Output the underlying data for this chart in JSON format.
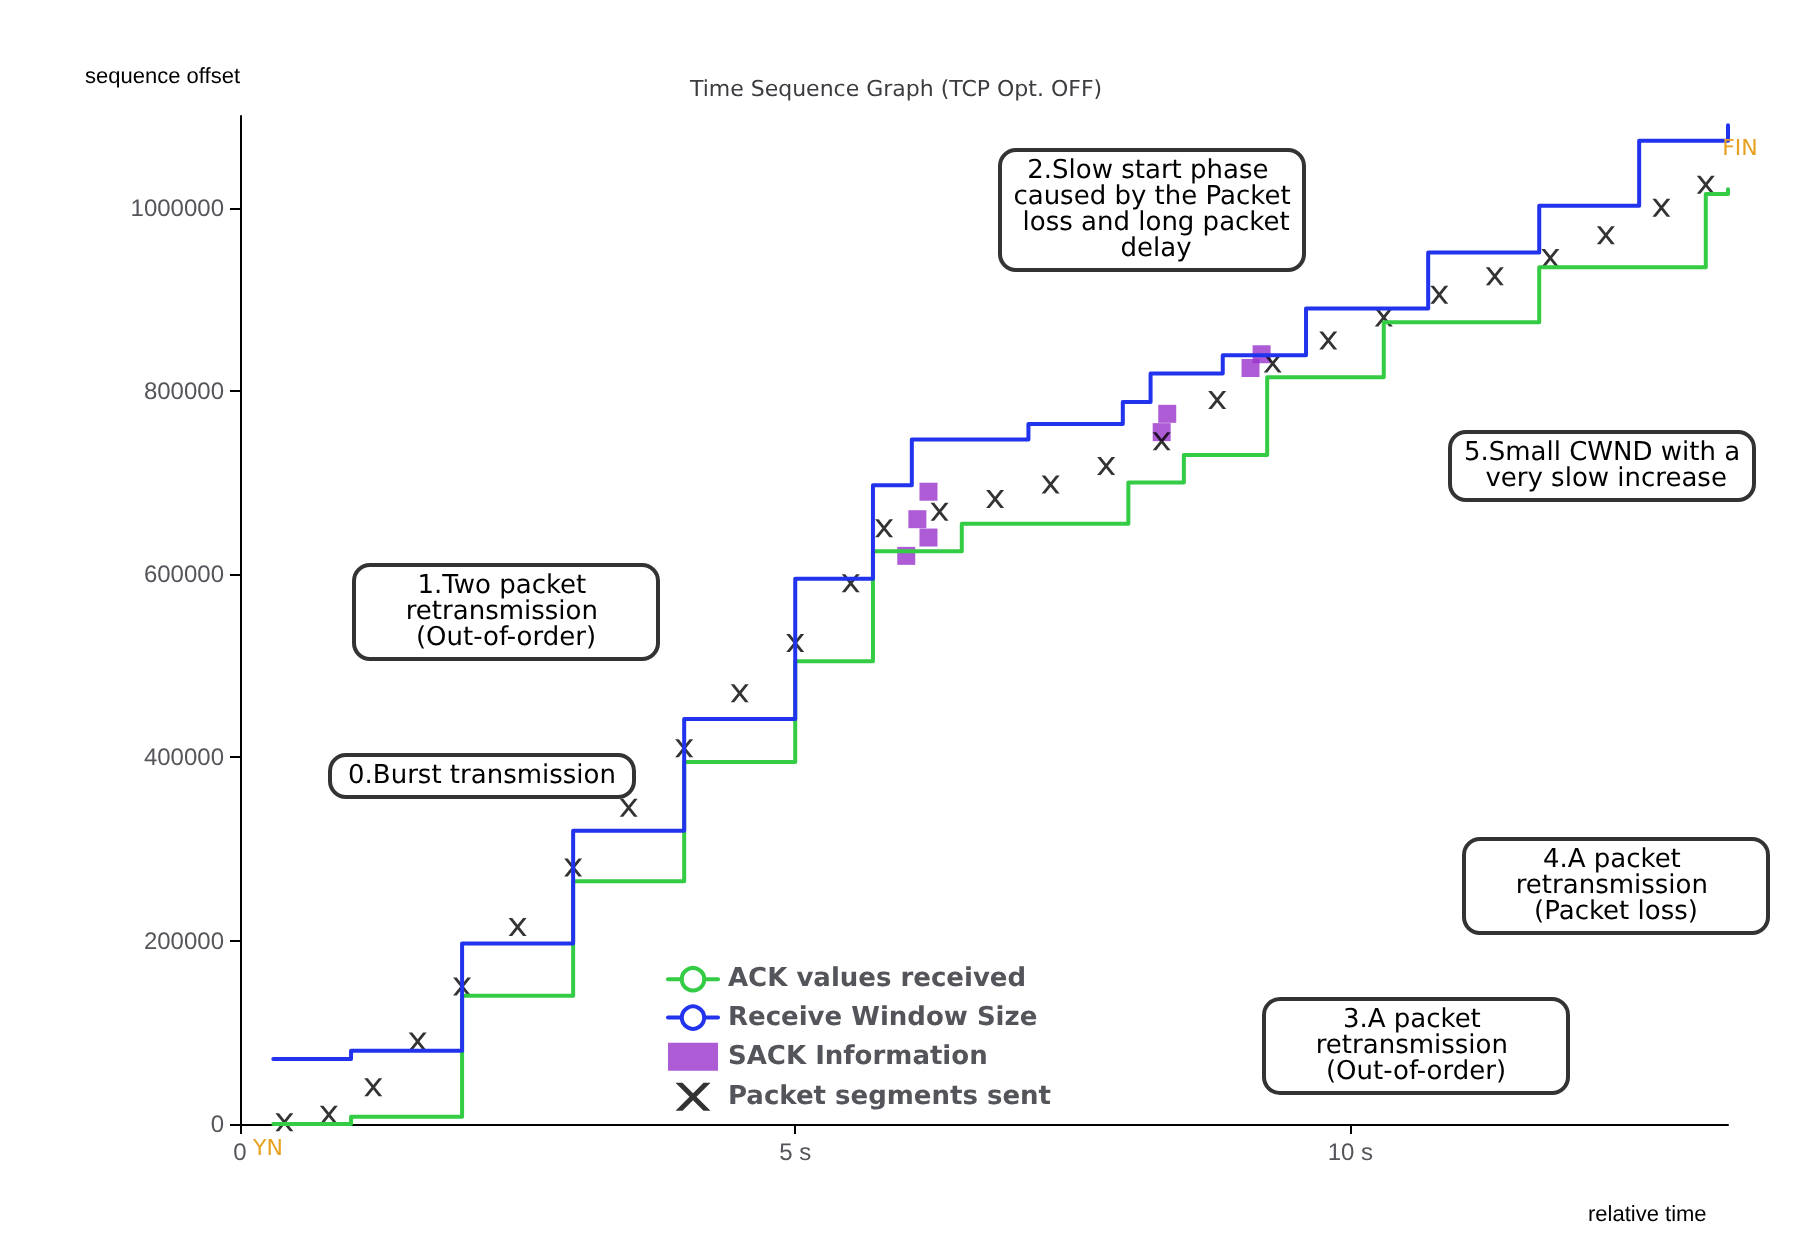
{
  "chart_data": {
    "type": "step",
    "title": "Time Sequence Graph (TCP Opt. OFF)",
    "xlabel": "relative time",
    "ylabel": "sequence offset",
    "xlim": [
      0,
      13.4
    ],
    "ylim": [
      0,
      1100000
    ],
    "xticks": [
      {
        "value": 0,
        "label": "0"
      },
      {
        "value": 5,
        "label": "5 s"
      },
      {
        "value": 10,
        "label": "10 s"
      }
    ],
    "yticks": [
      0,
      200000,
      400000,
      600000,
      800000,
      1000000
    ],
    "grid": false,
    "legend": "bottom",
    "line_style": "solid",
    "series": [
      {
        "name": "ACK values received",
        "color": "#33cc44",
        "x": [
          0.3,
          1,
          2,
          3,
          4,
          5,
          5.7,
          6.5,
          8,
          8.5,
          9.25,
          10.3,
          11.7,
          13.2,
          13.4
        ],
        "values": [
          0,
          8000,
          140000,
          265000,
          395000,
          505000,
          625000,
          655000,
          700000,
          730000,
          815000,
          875000,
          935000,
          1015000,
          1020000
        ]
      },
      {
        "name": "Receive Window Size",
        "color": "#2233ee",
        "x": [
          0.3,
          1,
          2,
          3,
          4,
          5,
          5.7,
          6.05,
          7.1,
          7.95,
          8.2,
          8.85,
          9.6,
          10.7,
          11.7,
          12.6,
          13.4
        ],
        "values": [
          71000,
          80000,
          197000,
          320000,
          442000,
          595000,
          697000,
          747000,
          764000,
          788000,
          819000,
          839000,
          890000,
          951000,
          1002000,
          1073000,
          1090000
        ]
      },
      {
        "name": "SACK Information",
        "type": "scatter",
        "marker": "square",
        "color": "#9933cc",
        "x": [
          6.0,
          6.1,
          6.2,
          6.2,
          8.3,
          8.35,
          9.1,
          9.2
        ],
        "values": [
          620000,
          660000,
          690000,
          640000,
          755000,
          775000,
          825000,
          840000
        ]
      },
      {
        "name": "Packet segments sent",
        "type": "scatter",
        "marker": "cross",
        "color": "#000000",
        "x": [
          0.4,
          0.8,
          1.2,
          1.6,
          2,
          2.5,
          3,
          3.5,
          4,
          4.5,
          5,
          5.5,
          5.8,
          6.3,
          6.8,
          7.3,
          7.8,
          8.3,
          8.8,
          9.3,
          9.8,
          10.3,
          10.8,
          11.3,
          11.8,
          12.3,
          12.8,
          13.2
        ],
        "values": [
          2000,
          10000,
          40000,
          90000,
          150000,
          215000,
          280000,
          345000,
          410000,
          470000,
          525000,
          590000,
          650000,
          668000,
          682000,
          698000,
          718000,
          745000,
          790000,
          830000,
          855000,
          880000,
          905000,
          925000,
          945000,
          970000,
          1000000,
          1025000
        ]
      }
    ],
    "annotations": [
      "0.Burst transmission",
      "1.Two packet retransmission (Out-of-order)",
      "2.Slow start phase caused by the Packet loss and long packet delay",
      "3.A packet retransmission (Out-of-order)",
      "4.A packet retransmission (Packet loss)",
      "5.Small CWND with a very slow increase",
      "FIN",
      "YN"
    ]
  }
}
